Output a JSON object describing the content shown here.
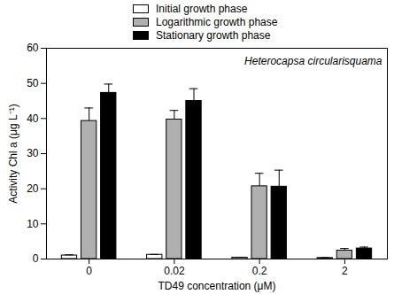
{
  "chart_data": {
    "type": "bar",
    "x_label": "TD49 concentration (μM)",
    "y_label": "Activity Chl a (μg L⁻¹)",
    "annotation": "Heterocapsa circularisquama",
    "categories": [
      "0",
      "0.02",
      "0.2",
      "2"
    ],
    "series": [
      {
        "name": "Initial growth phase",
        "color": "#ffffff",
        "values": [
          1.0,
          1.2,
          0.4,
          0.3
        ],
        "errors": [
          0.2,
          0.1,
          0.1,
          0.1
        ]
      },
      {
        "name": "Logarithmic growth phase",
        "color": "#b0b0b0",
        "values": [
          39.3,
          39.7,
          20.7,
          2.4
        ],
        "errors": [
          3.7,
          2.6,
          3.7,
          0.6
        ]
      },
      {
        "name": "Stationary growth phase",
        "color": "#000000",
        "values": [
          47.3,
          45.0,
          20.6,
          3.0
        ],
        "errors": [
          2.5,
          3.5,
          4.7,
          0.4
        ]
      }
    ],
    "ylim": [
      0,
      60
    ],
    "yticks": [
      0,
      10,
      20,
      30,
      40,
      50,
      60
    ],
    "legend": "top",
    "grid": false
  }
}
